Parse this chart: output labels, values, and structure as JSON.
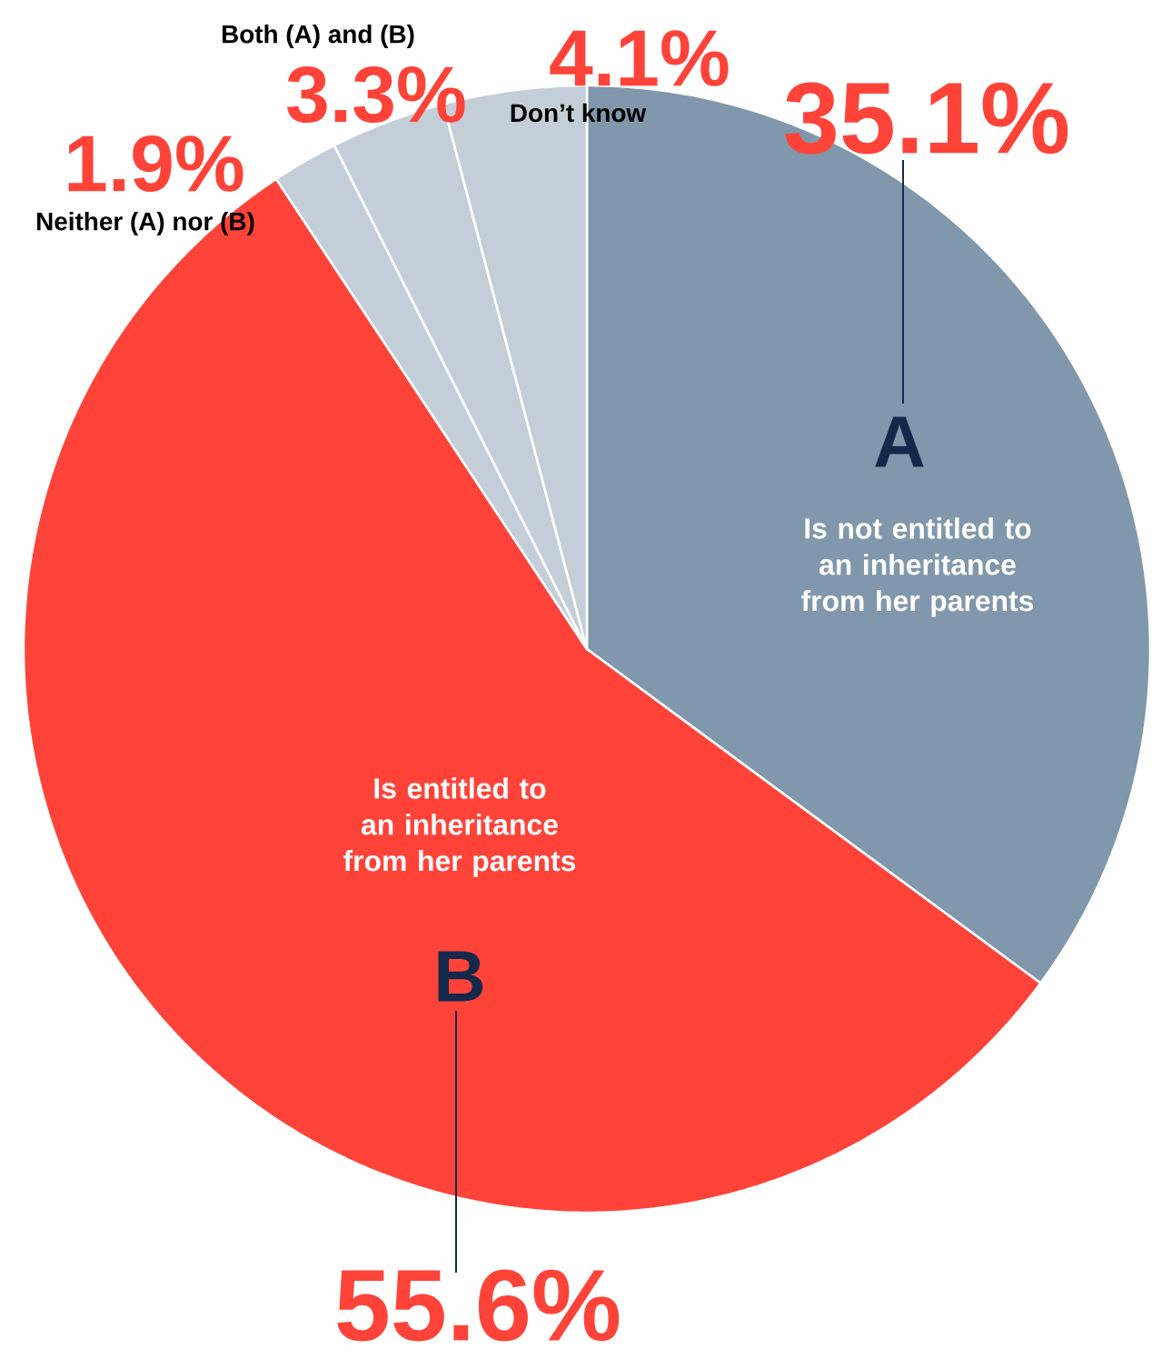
{
  "chart_data": {
    "type": "pie",
    "categories": [
      "Is not entitled to an inheritance from her parents",
      "Is entitled to an inheritance from her parents",
      "Neither (A) nor (B)",
      "Both (A) and (B)",
      "Don’t know"
    ],
    "values": [
      35.1,
      55.6,
      1.9,
      3.3,
      4.1
    ],
    "colors": [
      "#8197ab",
      "#ff4339",
      "#c3ced8",
      "#c3ced8",
      "#c3ced8"
    ],
    "value_labels": [
      "35.1%",
      "55.6%",
      "1.9%",
      "3.3%",
      "4.1%"
    ],
    "annotations": [
      "A",
      "B"
    ]
  }
}
